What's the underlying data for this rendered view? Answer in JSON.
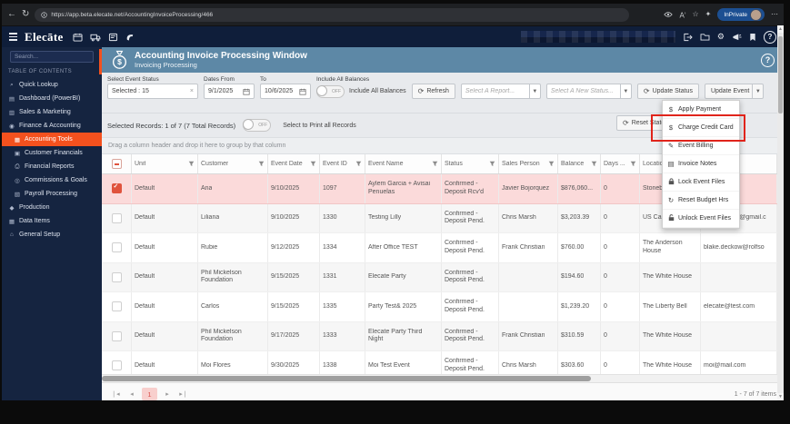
{
  "browser": {
    "url": "https://app.beta.elecate.net/AccountingInvoiceProcessing/466",
    "inprivate_label": "InPrivate",
    "back_glyph": "←",
    "reload_glyph": "↻",
    "more_glyph": "⋯"
  },
  "app_header": {
    "brand": "Elecāte"
  },
  "sidebar": {
    "search_placeholder": "Search...",
    "section_title": "TABLE OF CONTENTS",
    "items": [
      {
        "label": "Quick Lookup",
        "icon": "search-icon",
        "glyph": "⌕",
        "indent": 0,
        "active": false
      },
      {
        "label": "Dashboard (PowerBI)",
        "icon": "dashboard-icon",
        "glyph": "▤",
        "indent": 0,
        "active": false
      },
      {
        "label": "Sales & Marketing",
        "icon": "sales-marketing-icon",
        "glyph": "▥",
        "indent": 0,
        "active": false
      },
      {
        "label": "Finance & Accounting",
        "icon": "finance-icon",
        "glyph": "◉",
        "indent": 0,
        "active": false
      },
      {
        "label": "Accounting Tools",
        "icon": "accounting-tools-icon",
        "glyph": "▦",
        "indent": 1,
        "active": true
      },
      {
        "label": "Customer Financials",
        "icon": "customer-financials-icon",
        "glyph": "▣",
        "indent": 1,
        "active": false
      },
      {
        "label": "Financial Reports",
        "icon": "printer-icon",
        "glyph": "⎙",
        "indent": 1,
        "active": false
      },
      {
        "label": "Commissions & Goals",
        "icon": "goals-icon",
        "glyph": "◎",
        "indent": 1,
        "active": false
      },
      {
        "label": "Payroll Processing",
        "icon": "payroll-icon",
        "glyph": "▧",
        "indent": 1,
        "active": false
      },
      {
        "label": "Production",
        "icon": "production-icon",
        "glyph": "◆",
        "indent": 0,
        "active": false
      },
      {
        "label": "Data Items",
        "icon": "data-items-icon",
        "glyph": "▦",
        "indent": 0,
        "active": false
      },
      {
        "label": "General Setup",
        "icon": "general-setup-icon",
        "glyph": "⌂",
        "indent": 0,
        "active": false
      }
    ]
  },
  "titlebar": {
    "title": "Accounting Invoice Processing Window",
    "subtitle": "Invoicing Processing",
    "help_glyph": "?"
  },
  "filters": {
    "event_status_label": "Select Event Status",
    "event_status_value": "Selected : 15",
    "clear_glyph": "×",
    "dates_from_label": "Dates From",
    "dates_from_value": "9/1/2025",
    "to_label": "To",
    "to_value": "10/6/2025",
    "include_all_label": "Include All Balances",
    "toggle_off": "OFF",
    "include_all_text": "Include All Balances",
    "refresh_label": "Refresh",
    "refresh_glyph": "⟳",
    "report_placeholder": "Select A Report...",
    "status_placeholder": "Select A New Status...",
    "dropdown_arrow_glyph": "▼",
    "update_status_label": "Update Status",
    "update_event_label": "Update Event"
  },
  "records_bar": {
    "summary": "Selected Records: 1 of 7 (7 Total Records)",
    "toggle_off": "OFF",
    "print_label": "Select to Print all Records",
    "reset_state_label": "Reset State",
    "reset_glyph": "⟳"
  },
  "group_bar": {
    "hint": "Drag a column header and drop it here to group by that column"
  },
  "table": {
    "columns": [
      "Unit",
      "Customer",
      "Event Date",
      "Event ID",
      "Event Name",
      "Status",
      "Sales Person",
      "Balance",
      "Days ...",
      "Location",
      ""
    ],
    "rows": [
      {
        "selected": true,
        "unit": "Default",
        "customer": "Ana",
        "event_date": "9/10/2025",
        "event_id": "1097",
        "event_name": "Aylem Garcia + Avisai Penuelas",
        "status": "Confirmed - Deposit Rcv'd",
        "sales_person": "Javier Bojorquez",
        "balance": "$876,060...",
        "days": "0",
        "location": "Stonebridge M...",
        "email": ""
      },
      {
        "selected": false,
        "unit": "Default",
        "customer": "Liliana",
        "event_date": "9/10/2025",
        "event_id": "1330",
        "event_name": "Testing Lilly",
        "status": "Confirmed - Deposit Pend.",
        "sales_person": "Chris Marsh",
        "balance": "$3,203.39",
        "days": "0",
        "location": "US Capitol",
        "email": "javi.bojorgez@gmail.c"
      },
      {
        "selected": false,
        "unit": "Default",
        "customer": "Rubie",
        "event_date": "9/12/2025",
        "event_id": "1334",
        "event_name": "After Office TEST",
        "status": "Confirmed - Deposit Pend.",
        "sales_person": "Frank Christian",
        "balance": "$760.00",
        "days": "0",
        "location": "The Anderson House",
        "email": "blake.deckow@rolfso"
      },
      {
        "selected": false,
        "unit": "Default",
        "customer": "Phil Mickelson Foundation",
        "event_date": "9/15/2025",
        "event_id": "1331",
        "event_name": "Elecate Party",
        "status": "Confirmed - Deposit Pend.",
        "sales_person": "",
        "balance": "$194.60",
        "days": "0",
        "location": "The White House",
        "email": ""
      },
      {
        "selected": false,
        "unit": "Default",
        "customer": "Carlos",
        "event_date": "9/15/2025",
        "event_id": "1335",
        "event_name": "Party Test& 2025",
        "status": "Confirmed - Deposit Pend.",
        "sales_person": "",
        "balance": "$1,239.20",
        "days": "0",
        "location": "The Liberty Bell",
        "email": "elecate@test.com"
      },
      {
        "selected": false,
        "unit": "Default",
        "customer": "Phil Mickelson Foundation",
        "event_date": "9/17/2025",
        "event_id": "1333",
        "event_name": "Elecate Party Third Night",
        "status": "Confirmed - Deposit Pend.",
        "sales_person": "Frank Christian",
        "balance": "$310.59",
        "days": "0",
        "location": "The White House",
        "email": ""
      },
      {
        "selected": false,
        "unit": "Default",
        "customer": "Moi Flores",
        "event_date": "9/30/2025",
        "event_id": "1338",
        "event_name": "Moi Test Event",
        "status": "Confirmed - Deposit Pend.",
        "sales_person": "Chris Marsh",
        "balance": "$303.60",
        "days": "0",
        "location": "The White House",
        "email": "moi@mail.com"
      }
    ]
  },
  "pager": {
    "current_page": "1",
    "info": "1 - 7 of 7 items"
  },
  "context_menu": {
    "items": [
      {
        "label": "Apply Payment",
        "icon": "dollar-icon",
        "glyph": "$",
        "highlighted": false
      },
      {
        "label": "Charge Credit Card",
        "icon": "dollar-icon",
        "glyph": "$",
        "highlighted": true
      },
      {
        "label": "Event Billing",
        "icon": "pen-icon",
        "glyph": "✎",
        "highlighted": false
      },
      {
        "label": "Invoice Notes",
        "icon": "notes-icon",
        "glyph": "▤",
        "highlighted": false
      },
      {
        "label": "Lock Event Files",
        "icon": "lock-icon",
        "glyph": "svg:lock",
        "highlighted": false
      },
      {
        "label": "Reset Budget Hrs",
        "icon": "reset-icon",
        "glyph": "↻",
        "highlighted": false
      },
      {
        "label": "Unlock Event Files",
        "icon": "unlock-icon",
        "glyph": "svg:unlock",
        "highlighted": false
      }
    ]
  },
  "colors": {
    "accent_orange": "#f4511e",
    "selected_row_pink": "#fbdada",
    "titlebar_blue": "#5d88a6",
    "annotation_red": "#e0241b",
    "header_navy": "#0f1e3a"
  }
}
